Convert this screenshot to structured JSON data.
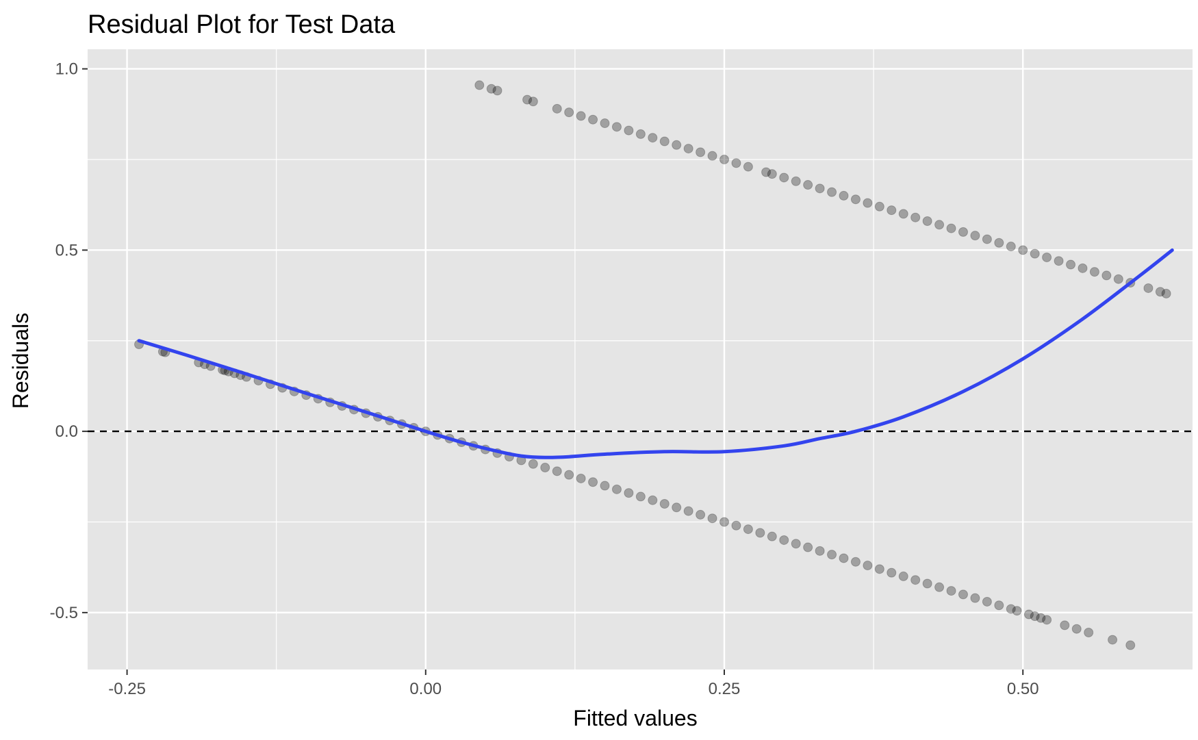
{
  "chart_data": {
    "type": "scatter",
    "title": "Residual Plot for Test Data",
    "xlabel": "Fitted values",
    "ylabel": "Residuals",
    "xlim": [
      -0.283,
      0.642
    ],
    "ylim": [
      -0.657,
      1.054
    ],
    "x_ticks": [
      -0.25,
      0.0,
      0.25,
      0.5
    ],
    "x_tick_labels": [
      "-0.25",
      "0.00",
      "0.25",
      "0.50"
    ],
    "y_ticks": [
      -0.5,
      0.0,
      0.5,
      1.0
    ],
    "y_tick_labels": [
      "-0.5",
      "0.0",
      "0.5",
      "1.0"
    ],
    "grid": true,
    "reference_line": {
      "y": 0,
      "style": "dashed",
      "color": "#000000"
    },
    "series": [
      {
        "kind": "points",
        "color": "#000000",
        "opacity": 0.3,
        "relation": "residual = -fitted",
        "x": [
          -0.24,
          -0.22,
          -0.218,
          -0.19,
          -0.185,
          -0.18,
          -0.17,
          -0.168,
          -0.165,
          -0.16,
          -0.155,
          -0.15,
          -0.14,
          -0.13,
          -0.12,
          -0.11,
          -0.1,
          -0.09,
          -0.08,
          -0.07,
          -0.06,
          -0.05,
          -0.04,
          -0.03,
          -0.02,
          -0.01,
          0.0,
          0.01,
          0.02,
          0.03,
          0.04,
          0.05,
          0.06,
          0.07,
          0.08,
          0.09,
          0.1,
          0.11,
          0.12,
          0.13,
          0.14,
          0.15,
          0.16,
          0.17,
          0.18,
          0.19,
          0.2,
          0.21,
          0.22,
          0.23,
          0.24,
          0.25,
          0.26,
          0.27,
          0.28,
          0.29,
          0.3,
          0.31,
          0.32,
          0.33,
          0.34,
          0.35,
          0.36,
          0.37,
          0.38,
          0.39,
          0.4,
          0.41,
          0.42,
          0.43,
          0.44,
          0.45,
          0.46,
          0.47,
          0.48,
          0.49,
          0.495,
          0.505,
          0.51,
          0.515,
          0.52,
          0.535,
          0.545,
          0.555,
          0.575,
          0.59
        ],
        "y": [
          0.24,
          0.22,
          0.218,
          0.19,
          0.185,
          0.18,
          0.17,
          0.168,
          0.165,
          0.16,
          0.155,
          0.15,
          0.14,
          0.13,
          0.12,
          0.11,
          0.1,
          0.09,
          0.08,
          0.07,
          0.06,
          0.05,
          0.04,
          0.03,
          0.02,
          0.01,
          0.0,
          -0.01,
          -0.02,
          -0.03,
          -0.04,
          -0.05,
          -0.06,
          -0.07,
          -0.08,
          -0.09,
          -0.1,
          -0.11,
          -0.12,
          -0.13,
          -0.14,
          -0.15,
          -0.16,
          -0.17,
          -0.18,
          -0.19,
          -0.2,
          -0.21,
          -0.22,
          -0.23,
          -0.24,
          -0.25,
          -0.26,
          -0.27,
          -0.28,
          -0.29,
          -0.3,
          -0.31,
          -0.32,
          -0.33,
          -0.34,
          -0.35,
          -0.36,
          -0.37,
          -0.38,
          -0.39,
          -0.4,
          -0.41,
          -0.42,
          -0.43,
          -0.44,
          -0.45,
          -0.46,
          -0.47,
          -0.48,
          -0.49,
          -0.495,
          -0.505,
          -0.51,
          -0.515,
          -0.52,
          -0.535,
          -0.545,
          -0.555,
          -0.575,
          -0.59
        ]
      },
      {
        "kind": "points",
        "color": "#000000",
        "opacity": 0.3,
        "relation": "residual = 1 - fitted",
        "x": [
          0.045,
          0.055,
          0.06,
          0.085,
          0.09,
          0.11,
          0.12,
          0.13,
          0.14,
          0.15,
          0.16,
          0.17,
          0.18,
          0.19,
          0.2,
          0.21,
          0.22,
          0.23,
          0.24,
          0.25,
          0.26,
          0.27,
          0.285,
          0.29,
          0.3,
          0.31,
          0.32,
          0.33,
          0.34,
          0.35,
          0.36,
          0.37,
          0.38,
          0.39,
          0.4,
          0.41,
          0.42,
          0.43,
          0.44,
          0.45,
          0.46,
          0.47,
          0.48,
          0.49,
          0.5,
          0.51,
          0.52,
          0.53,
          0.54,
          0.55,
          0.56,
          0.57,
          0.58,
          0.59,
          0.605,
          0.615,
          0.62
        ],
        "y": [
          0.955,
          0.945,
          0.94,
          0.915,
          0.91,
          0.89,
          0.88,
          0.87,
          0.86,
          0.85,
          0.84,
          0.83,
          0.82,
          0.81,
          0.8,
          0.79,
          0.78,
          0.77,
          0.76,
          0.75,
          0.74,
          0.73,
          0.715,
          0.71,
          0.7,
          0.69,
          0.68,
          0.67,
          0.66,
          0.65,
          0.64,
          0.63,
          0.62,
          0.61,
          0.6,
          0.59,
          0.58,
          0.57,
          0.56,
          0.55,
          0.54,
          0.53,
          0.52,
          0.51,
          0.5,
          0.49,
          0.48,
          0.47,
          0.46,
          0.45,
          0.44,
          0.43,
          0.42,
          0.41,
          0.395,
          0.385,
          0.38
        ]
      },
      {
        "kind": "smooth",
        "color": "#3344ee",
        "x": [
          -0.24,
          -0.2,
          -0.15,
          -0.1,
          -0.05,
          0.0,
          0.03,
          0.06,
          0.08,
          0.1,
          0.12,
          0.15,
          0.2,
          0.25,
          0.3,
          0.33,
          0.36,
          0.4,
          0.45,
          0.5,
          0.55,
          0.6,
          0.625
        ],
        "y": [
          0.25,
          0.21,
          0.158,
          0.105,
          0.053,
          0.0,
          -0.03,
          -0.055,
          -0.068,
          -0.072,
          -0.07,
          -0.063,
          -0.056,
          -0.056,
          -0.04,
          -0.02,
          0.0,
          0.04,
          0.11,
          0.2,
          0.31,
          0.435,
          0.5
        ]
      }
    ]
  }
}
